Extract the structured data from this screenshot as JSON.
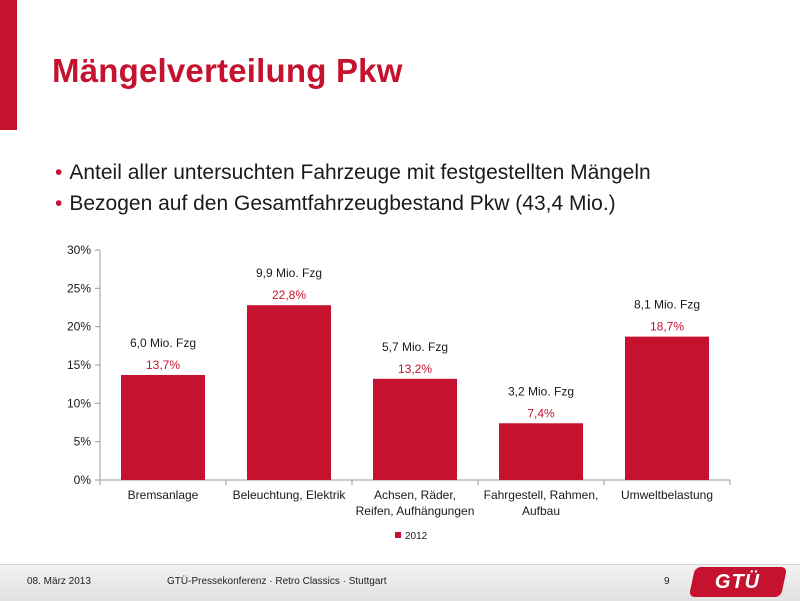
{
  "slide": {
    "title": "Mängelverteilung Pkw",
    "bullets": [
      "Anteil aller untersuchten Fahrzeuge mit festgestellten Mängeln",
      "Bezogen auf den Gesamtfahrzeugbestand Pkw (43,4 Mio.)"
    ],
    "bullet_symbol": "•"
  },
  "chart_data": {
    "type": "bar",
    "categories": [
      [
        "Bremsanlage"
      ],
      [
        "Beleuchtung, Elektrik"
      ],
      [
        "Achsen, Räder,",
        "Reifen, Aufhängungen"
      ],
      [
        "Fahrgestell, Rahmen,",
        "Aufbau"
      ],
      [
        "Umweltbelastung"
      ]
    ],
    "series": [
      {
        "name": "2012",
        "values": [
          13.7,
          22.8,
          13.2,
          7.4,
          18.7
        ]
      }
    ],
    "value_labels": [
      "13,7%",
      "22,8%",
      "13,2%",
      "7,4%",
      "18,7%"
    ],
    "annotations": [
      "6,0 Mio. Fzg",
      "9,9 Mio. Fzg",
      "5,7 Mio. Fzg",
      "3,2 Mio. Fzg",
      "8,1 Mio. Fzg"
    ],
    "ylim": [
      0,
      30
    ],
    "yticks": [
      0,
      5,
      10,
      15,
      20,
      25,
      30
    ],
    "ytick_labels": [
      "0%",
      "5%",
      "10%",
      "15%",
      "20%",
      "25%",
      "30%"
    ],
    "legend_position": "bottom",
    "grid": false,
    "colors": {
      "bar": "#c4122f",
      "value_label": "#c4122f"
    }
  },
  "footer": {
    "date": "08. März 2013",
    "conference": "GTÜ-Pressekonferenz · Retro Classics · Stuttgart",
    "page": "9",
    "logo_text": "GTÜ"
  },
  "colors": {
    "accent": "#c4122f"
  }
}
